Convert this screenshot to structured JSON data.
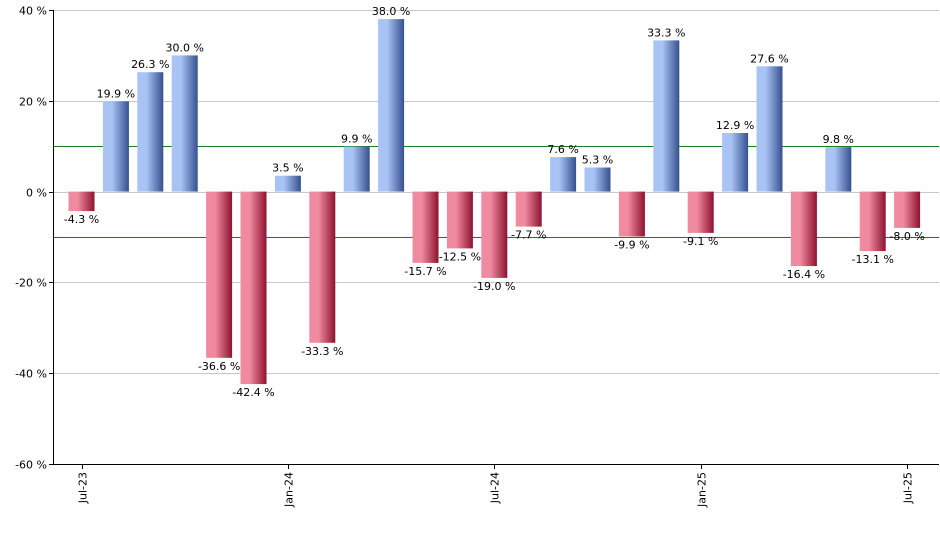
{
  "chart_data": {
    "type": "bar",
    "title": "",
    "xlabel": "",
    "ylabel": "",
    "ylim": [
      -60,
      40
    ],
    "yticks": [
      40,
      20,
      0,
      -20,
      -40,
      -60
    ],
    "ytick_labels": [
      "40 %",
      "20 %",
      "0 %",
      "-20 %",
      "-40 %",
      "-60 %"
    ],
    "grid": true,
    "reference_lines": [
      10,
      -10
    ],
    "value_suffix": " %",
    "categories": [
      "Jul-23",
      "Aug-23",
      "Sep-23",
      "Oct-23",
      "Nov-23",
      "Dec-23",
      "Jan-24",
      "Feb-24",
      "Mar-24",
      "Apr-24",
      "May-24",
      "Jun-24",
      "Jul-24",
      "Aug-24",
      "Sep-24",
      "Oct-24",
      "Nov-24",
      "Dec-24",
      "Jan-25",
      "Feb-25",
      "Mar-25",
      "Apr-25",
      "May-25",
      "Jun-25",
      "Jul-25"
    ],
    "values": [
      -4.3,
      19.9,
      26.3,
      30.0,
      -36.6,
      -42.4,
      3.5,
      -33.3,
      9.9,
      38.0,
      -15.7,
      -12.5,
      -19.0,
      -7.7,
      7.6,
      5.3,
      -9.9,
      33.3,
      -9.1,
      12.9,
      27.6,
      -16.4,
      9.8,
      -13.1,
      -8.0
    ],
    "xtick_labels": [
      {
        "index": 0,
        "label": "Jul-23"
      },
      {
        "index": 6,
        "label": "Jan-24"
      },
      {
        "index": 12,
        "label": "Jul-24"
      },
      {
        "index": 18,
        "label": "Jan-25"
      },
      {
        "index": 24,
        "label": "Jul-25"
      }
    ],
    "colors": {
      "positive_light": "#a9c3f5",
      "positive_dark": "#35508f",
      "negative_light": "#f08aa0",
      "negative_dark": "#8e1230",
      "reference_line": "#1e7a1e",
      "grid": "#c8c8c8",
      "axis": "#000000"
    }
  }
}
